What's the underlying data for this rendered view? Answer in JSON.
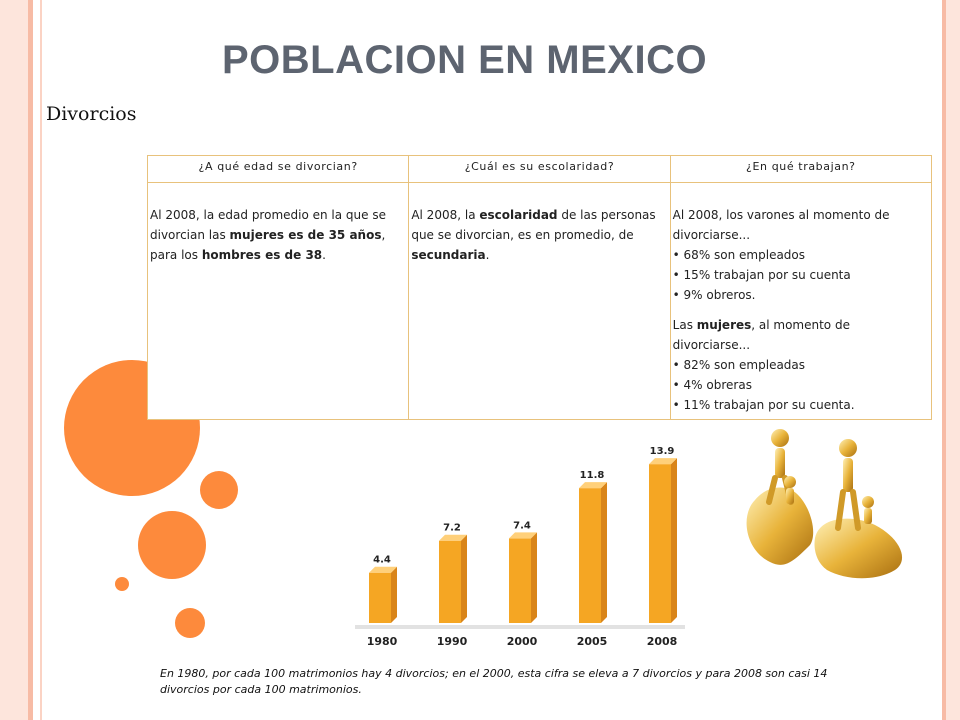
{
  "title": "POBLACION EN  MEXICO",
  "subtitle": "Divorcios",
  "table": {
    "headers": [
      "¿A qué edad se divorcian?",
      "¿Cuál es su escolaridad?",
      "¿En qué trabajan?"
    ],
    "col1": {
      "t1": "Al 2008, la edad promedio en la que se divorcian las ",
      "b1": "mujeres es de 35 años",
      "t2": ", para los ",
      "b2": "hombres es de 38",
      "t3": "."
    },
    "col2": {
      "t1": "Al 2008, la ",
      "b1": "escolaridad",
      "t2": " de las personas que se divorcian, es en promedio, de ",
      "b2": "secundaria",
      "t3": "."
    },
    "col3": {
      "intro": "Al 2008, los varones al momento de divorciarse...",
      "men": [
        "• 68% son empleados",
        "• 15% trabajan por su cuenta",
        "• 9% obreros."
      ],
      "women_t1": "Las ",
      "women_b": "mujeres",
      "women_t2": ", al momento de divorciarse...",
      "women": [
        "• 82% son empleadas",
        "• 4% obreras",
        "• 11% trabajan por su cuenta."
      ]
    }
  },
  "chart_data": {
    "type": "bar",
    "categories": [
      "1980",
      "1990",
      "2000",
      "2005",
      "2008"
    ],
    "values": [
      4.4,
      7.2,
      7.4,
      11.8,
      13.9
    ],
    "value_labels": [
      "4.4",
      "7.2",
      "7.4",
      "11.8",
      "13.9"
    ],
    "title": "",
    "xlabel": "",
    "ylabel": "",
    "ylim": [
      0,
      14
    ],
    "grid": false,
    "bar_color": "#f5a623"
  },
  "caption": "En 1980, por cada 100 matrimonios hay 4 divorcios; en el 2000, esta cifra se eleva a 7 divorcios y para 2008 son casi 14 divorcios por cada 100 matrimonios.",
  "colors": {
    "accent": "#fd8a3c",
    "title": "#5d6470",
    "stripe": "#f7c4b0",
    "table_border": "#e8c27c"
  }
}
